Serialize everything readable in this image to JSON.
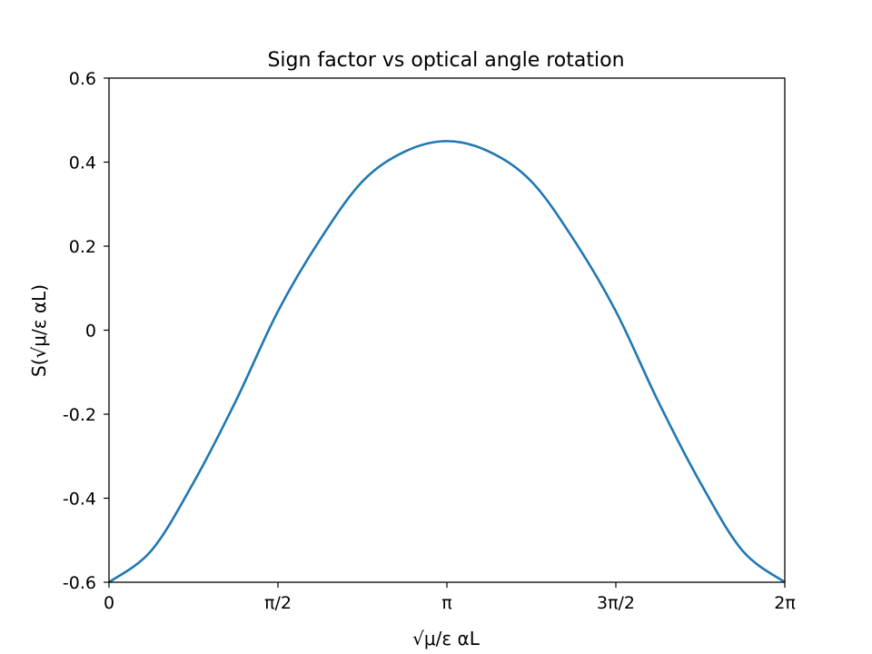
{
  "chart_data": {
    "type": "line",
    "title": "Sign factor vs optical angle rotation",
    "xlabel": "√μ/ε αL",
    "ylabel": "S(√μ/ε αL)",
    "xlim": [
      0,
      6.283185307
    ],
    "ylim": [
      -0.6,
      0.6
    ],
    "grid": false,
    "x_ticks": [
      {
        "value": 0,
        "label": "0"
      },
      {
        "value": 1.5707963,
        "label": "π/2"
      },
      {
        "value": 3.1415927,
        "label": "π"
      },
      {
        "value": 4.712389,
        "label": "3π/2"
      },
      {
        "value": 6.2831853,
        "label": "2π"
      }
    ],
    "y_ticks": [
      {
        "value": 0.6,
        "label": "0.6"
      },
      {
        "value": 0.4,
        "label": "0.4"
      },
      {
        "value": 0.2,
        "label": "0.2"
      },
      {
        "value": 0,
        "label": "0"
      },
      {
        "value": -0.2,
        "label": "-0.2"
      },
      {
        "value": -0.4,
        "label": "-0.4"
      },
      {
        "value": -0.6,
        "label": "-0.6"
      }
    ],
    "series": [
      {
        "color": "#1f77b4",
        "x": [
          0,
          0.3927,
          0.7854,
          1.1781,
          1.5708,
          1.9635,
          2.3562,
          2.7489,
          3.1416,
          3.5343,
          3.927,
          4.3197,
          4.7124,
          5.1051,
          5.4978,
          5.8905,
          6.2832
        ],
        "y": [
          -0.6,
          -0.525,
          -0.363,
          -0.169,
          0.045,
          0.216,
          0.354,
          0.425,
          0.45,
          0.425,
          0.354,
          0.216,
          0.045,
          -0.169,
          -0.363,
          -0.525,
          -0.6
        ]
      }
    ]
  }
}
